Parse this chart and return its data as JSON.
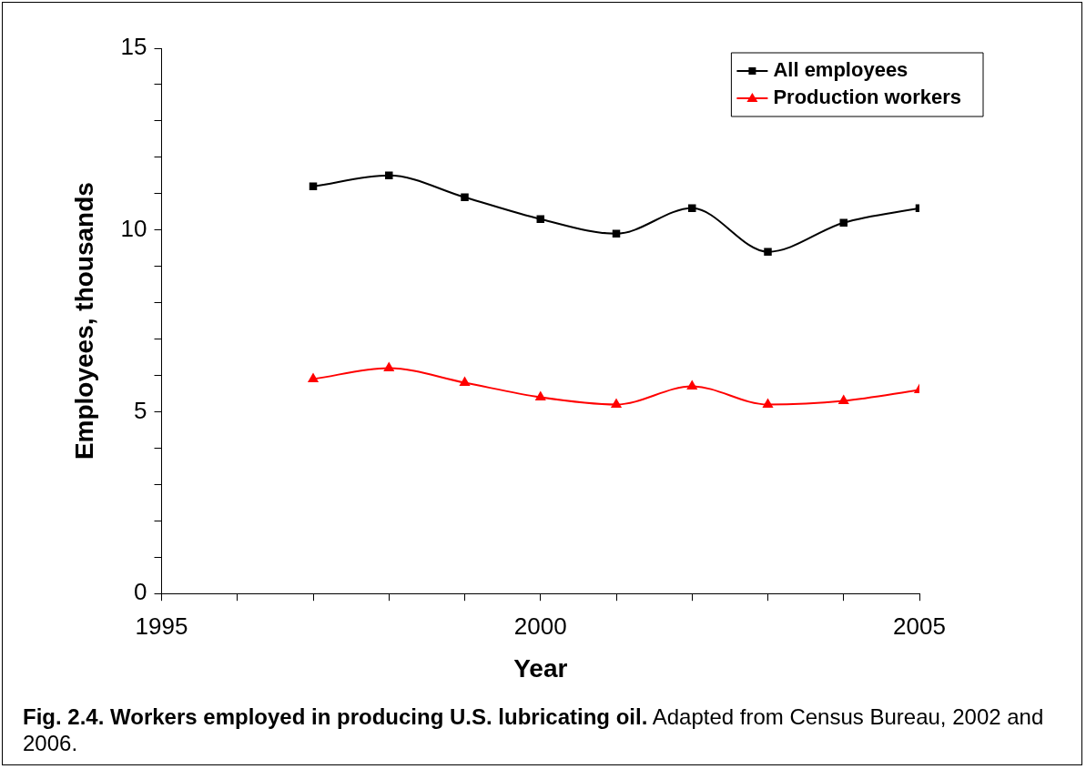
{
  "chart_data": {
    "type": "line",
    "title": "Fig. 2.4.  Workers employed in producing U.S. lubricating oil.",
    "annotations": [
      "Adapted from Census Bureau, 2002 and 2006."
    ],
    "xlabel": "Year",
    "ylabel": "Employees, thousands",
    "x": [
      1997,
      1998,
      1999,
      2000,
      2001,
      2002,
      2003,
      2004,
      2005
    ],
    "series": [
      {
        "name": "All employees",
        "color": "#000000",
        "marker": "square",
        "values": [
          11.2,
          11.5,
          10.9,
          10.3,
          9.9,
          10.6,
          9.4,
          10.2,
          10.6
        ]
      },
      {
        "name": "Production workers",
        "color": "#ff0000",
        "marker": "triangle",
        "values": [
          5.9,
          6.2,
          5.8,
          5.4,
          5.2,
          5.7,
          5.2,
          5.3,
          5.6
        ]
      }
    ],
    "xlim": [
      1995,
      2005
    ],
    "xticks": [
      1995,
      {
        "value": 1996,
        "label": null
      },
      {
        "value": 1997,
        "label": null
      },
      {
        "value": 1998,
        "label": null
      },
      {
        "value": 1999,
        "label": null
      },
      2000,
      {
        "value": 2001,
        "label": null
      },
      {
        "value": 2002,
        "label": null
      },
      {
        "value": 2003,
        "label": null
      },
      {
        "value": 2004,
        "label": null
      },
      2005
    ],
    "ylim": [
      0,
      15
    ],
    "yticks": [
      0,
      {
        "value": 1,
        "label": null
      },
      {
        "value": 2,
        "label": null
      },
      {
        "value": 3,
        "label": null
      },
      {
        "value": 4,
        "label": null
      },
      5,
      {
        "value": 6,
        "label": null
      },
      {
        "value": 7,
        "label": null
      },
      {
        "value": 8,
        "label": null
      },
      {
        "value": 9,
        "label": null
      },
      10,
      {
        "value": 11,
        "label": null
      },
      {
        "value": 12,
        "label": null
      },
      {
        "value": 13,
        "label": null
      },
      {
        "value": 14,
        "label": null
      },
      15
    ],
    "grid": false,
    "legend": "top right",
    "line_style": "solid"
  }
}
